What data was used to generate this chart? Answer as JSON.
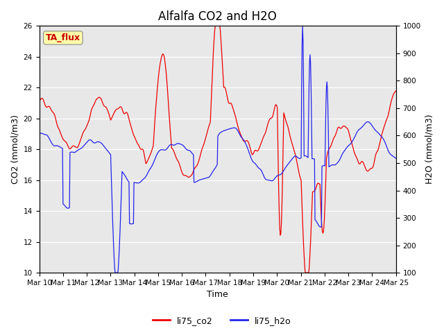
{
  "title": "Alfalfa CO2 and H2O",
  "xlabel": "Time",
  "ylabel_left": "CO2 (mmol/m3)",
  "ylabel_right": "H2O (mmol/m3)",
  "legend_label": "TA_flux",
  "legend_label_co2": "li75_co2",
  "legend_label_h2o": "li75_h2o",
  "ylim_left": [
    10,
    26
  ],
  "ylim_right": [
    100,
    1000
  ],
  "yticks_left": [
    10,
    12,
    14,
    16,
    18,
    20,
    22,
    24,
    26
  ],
  "yticks_right": [
    100,
    200,
    300,
    400,
    500,
    600,
    700,
    800,
    900,
    1000
  ],
  "color_co2": "#EE0000",
  "color_h2o": "#2222EE",
  "bg_color": "#E8E8E8",
  "annotation_bg": "#FFFFAA",
  "annotation_border": "#AAAAAA",
  "title_fontsize": 12,
  "axis_label_fontsize": 9,
  "tick_label_fontsize": 7.5,
  "line_width": 0.9,
  "num_points": 720,
  "seed": 42
}
